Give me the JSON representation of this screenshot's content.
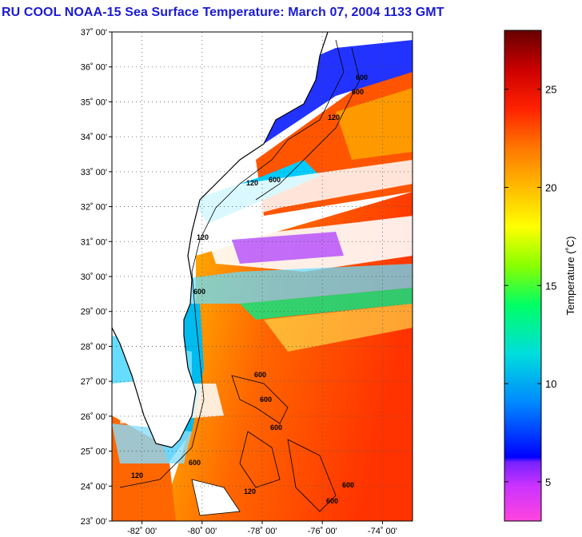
{
  "title": "RU COOL  NOAA-15  Sea Surface Temperature:  March 07, 2004 1133 GMT",
  "map": {
    "lat_labels": [
      "37˚ 00'",
      "36˚ 00'",
      "35˚ 00'",
      "34˚ 00'",
      "33˚ 00'",
      "32˚ 00'",
      "31˚ 00'",
      "30˚ 00'",
      "29˚ 00'",
      "28˚ 00'",
      "27˚ 00'",
      "26˚ 00'",
      "25˚ 00'",
      "24˚ 00'",
      "23˚ 00'"
    ],
    "lon_labels": [
      "-82˚ 00'",
      "-80˚ 00'",
      "-78˚ 00'",
      "-76˚ 00'",
      "-74˚ 00'"
    ],
    "lat_range": [
      23,
      37
    ],
    "lon_range": [
      -83,
      -73
    ],
    "isobath_labels": [
      "600",
      "120",
      "600",
      "120",
      "120",
      "600",
      "600",
      "600",
      "600",
      "600",
      "120",
      "120",
      "600",
      "600",
      "600"
    ],
    "land_color": "#ffffff",
    "cloud_color": "#ffffff"
  },
  "colorbar": {
    "label": "Temperature (˚C)",
    "ticks": [
      "25",
      "20",
      "15",
      "10",
      "5"
    ],
    "tick_values": [
      25,
      20,
      15,
      10,
      5
    ],
    "range": [
      3,
      28
    ],
    "colors": [
      "#ff33cc",
      "#cc33ff",
      "#8833ff",
      "#0000ff",
      "#0066ff",
      "#00ccff",
      "#00ffcc",
      "#00ff66",
      "#66ff00",
      "#ccff00",
      "#ffff00",
      "#ffcc00",
      "#ff9900",
      "#ff6600",
      "#ff3300",
      "#ee0000",
      "#aa0000",
      "#660000"
    ]
  }
}
